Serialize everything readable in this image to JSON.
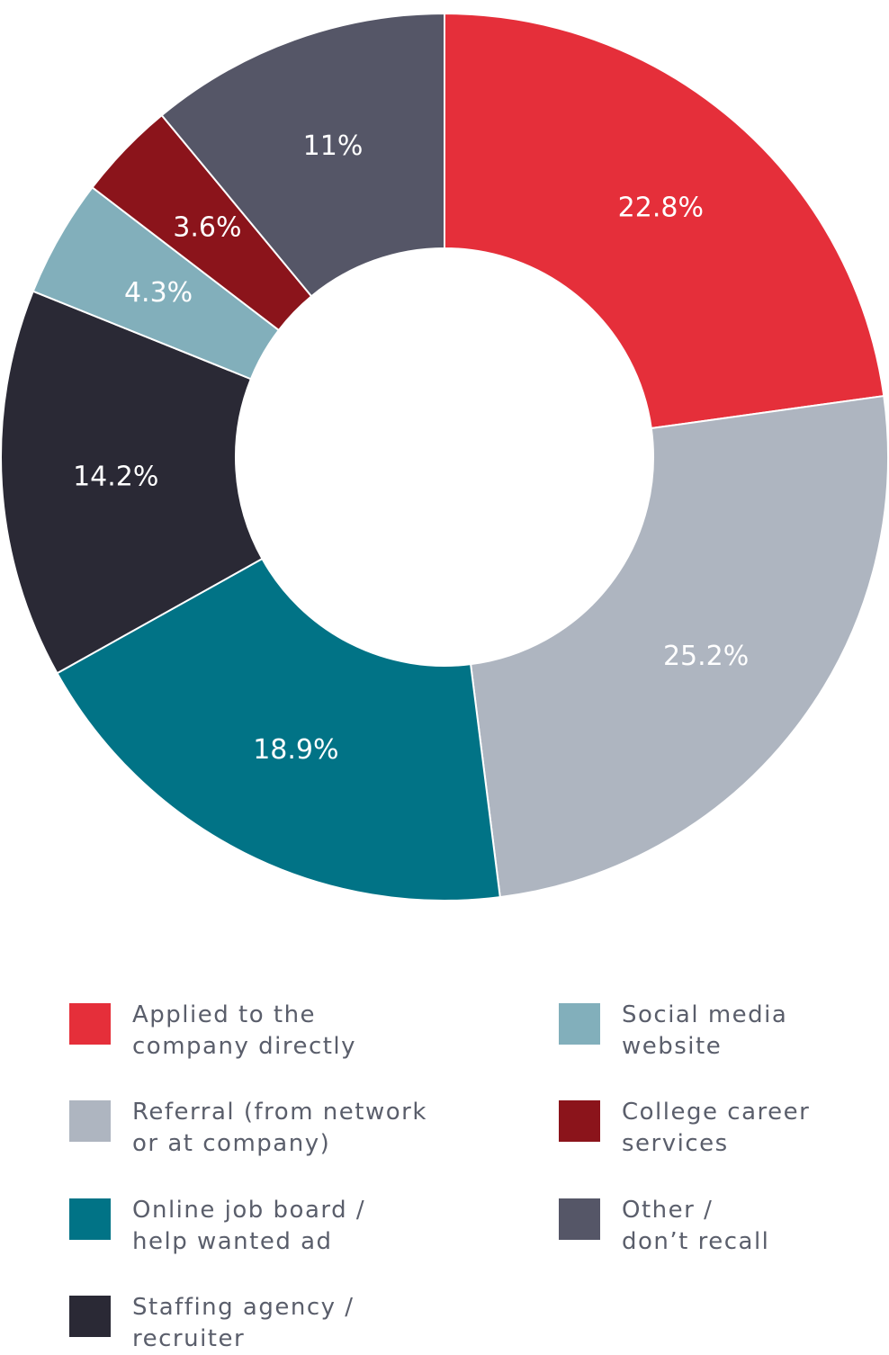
{
  "chart_data": {
    "type": "pie",
    "donut": true,
    "slices": [
      {
        "name": "Applied to the company directly",
        "value": 22.8,
        "label": "22.8%",
        "color": "#e52f3a"
      },
      {
        "name": "Referral (from network or at company)",
        "value": 25.2,
        "label": "25.2%",
        "color": "#aeb5c0"
      },
      {
        "name": "Online job board / help wanted ad",
        "value": 18.9,
        "label": "18.9%",
        "color": "#017386"
      },
      {
        "name": "Staffing agency / recruiter",
        "value": 14.2,
        "label": "14.2%",
        "color": "#2a2935"
      },
      {
        "name": "Social media website",
        "value": 4.3,
        "label": "4.3%",
        "color": "#82afbb"
      },
      {
        "name": "College career services",
        "value": 3.6,
        "label": "3.6%",
        "color": "#8b141b"
      },
      {
        "name": "Other / don’t recall",
        "value": 11,
        "label": "11%",
        "color": "#555667"
      }
    ],
    "legend": [
      {
        "lines": [
          "Applied to the",
          "company directly"
        ],
        "color": "#e52f3a"
      },
      {
        "lines": [
          "Referral (from network",
          "or at company)"
        ],
        "color": "#aeb5c0"
      },
      {
        "lines": [
          "Online job board /",
          "help wanted ad"
        ],
        "color": "#017386"
      },
      {
        "lines": [
          "Staffing agency /",
          "recruiter"
        ],
        "color": "#2a2935"
      },
      {
        "lines": [
          "Social media",
          "website"
        ],
        "color": "#82afbb"
      },
      {
        "lines": [
          "College career",
          "services"
        ],
        "color": "#8b141b"
      },
      {
        "lines": [
          "Other /",
          "don’t recall"
        ],
        "color": "#555667"
      }
    ],
    "legend_placement": "bottom"
  }
}
